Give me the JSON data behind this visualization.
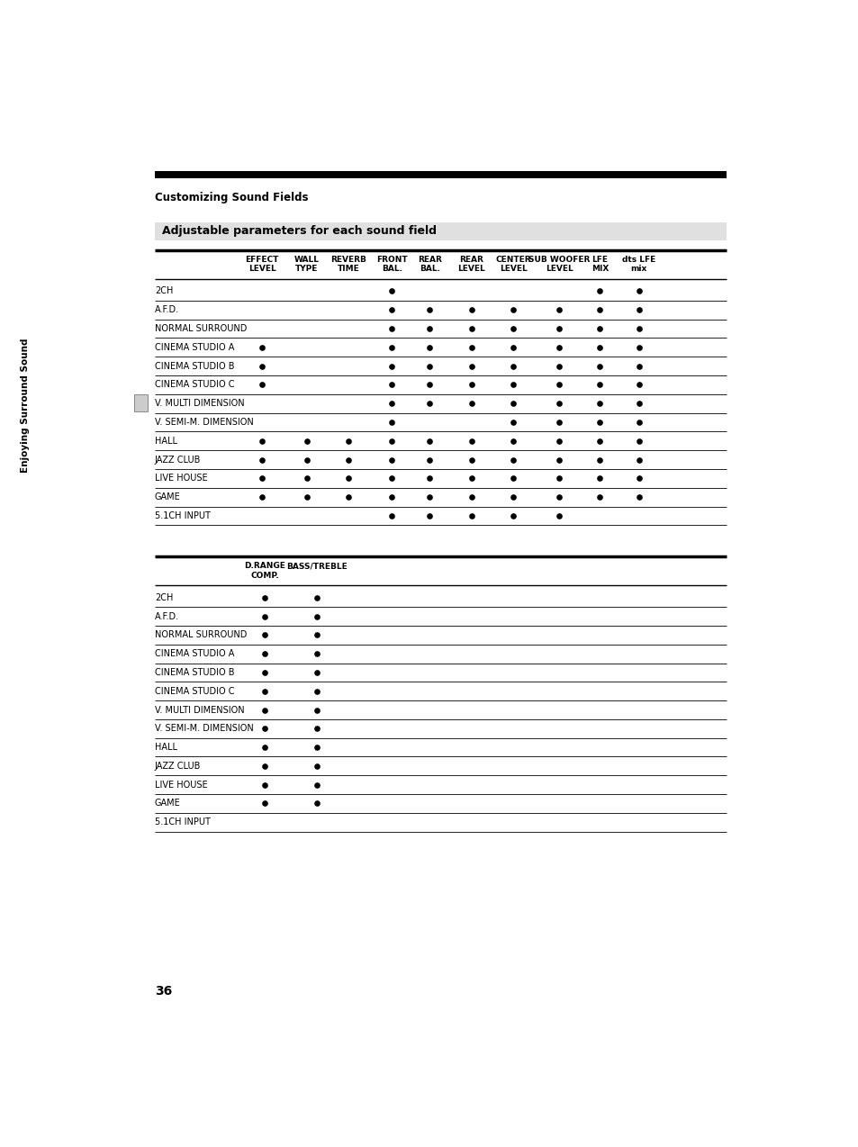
{
  "page_title": "Customizing Sound Fields",
  "section_title": "Adjustable parameters for each sound field",
  "top_bar_color": "#000000",
  "section_bg_color": "#e0e0e0",
  "text_color": "#000000",
  "dot_color": "#000000",
  "table1_col_headers": [
    "EFFECT\nLEVEL",
    "WALL\nTYPE",
    "REVERB\nTIME",
    "FRONT\nBAL.",
    "REAR\nBAL.",
    "REAR\nLEVEL",
    "CENTER\nLEVEL",
    "SUB WOOFER\nLEVEL",
    "LFE\nMIX",
    "dts LFE\nmix"
  ],
  "table1_rows": [
    [
      "2CH",
      false,
      false,
      false,
      true,
      false,
      false,
      false,
      false,
      true,
      true
    ],
    [
      "A.F.D.",
      false,
      false,
      false,
      true,
      true,
      true,
      true,
      true,
      true,
      true
    ],
    [
      "NORMAL SURROUND",
      false,
      false,
      false,
      true,
      true,
      true,
      true,
      true,
      true,
      true
    ],
    [
      "CINEMA STUDIO A",
      true,
      false,
      false,
      true,
      true,
      true,
      true,
      true,
      true,
      true
    ],
    [
      "CINEMA STUDIO B",
      true,
      false,
      false,
      true,
      true,
      true,
      true,
      true,
      true,
      true
    ],
    [
      "CINEMA STUDIO C",
      true,
      false,
      false,
      true,
      true,
      true,
      true,
      true,
      true,
      true
    ],
    [
      "V. MULTI DIMENSION",
      false,
      false,
      false,
      true,
      true,
      true,
      true,
      true,
      true,
      true
    ],
    [
      "V. SEMI-M. DIMENSION",
      false,
      false,
      false,
      true,
      false,
      false,
      true,
      true,
      true,
      true
    ],
    [
      "HALL",
      true,
      true,
      true,
      true,
      true,
      true,
      true,
      true,
      true,
      true
    ],
    [
      "JAZZ CLUB",
      true,
      true,
      true,
      true,
      true,
      true,
      true,
      true,
      true,
      true
    ],
    [
      "LIVE HOUSE",
      true,
      true,
      true,
      true,
      true,
      true,
      true,
      true,
      true,
      true
    ],
    [
      "GAME",
      true,
      true,
      true,
      true,
      true,
      true,
      true,
      true,
      true,
      true
    ],
    [
      "5.1CH INPUT",
      false,
      false,
      false,
      true,
      true,
      true,
      true,
      true,
      false,
      false
    ]
  ],
  "table2_col_headers": [
    "D.RANGE\nCOMP.",
    "BASS/TREBLE"
  ],
  "table2_rows": [
    [
      "2CH",
      true,
      true
    ],
    [
      "A.F.D.",
      true,
      true
    ],
    [
      "NORMAL SURROUND",
      true,
      true
    ],
    [
      "CINEMA STUDIO A",
      true,
      true
    ],
    [
      "CINEMA STUDIO B",
      true,
      true
    ],
    [
      "CINEMA STUDIO C",
      true,
      true
    ],
    [
      "V. MULTI DIMENSION",
      true,
      true
    ],
    [
      "V. SEMI-M. DIMENSION",
      true,
      true
    ],
    [
      "HALL",
      true,
      true
    ],
    [
      "JAZZ CLUB",
      true,
      true
    ],
    [
      "LIVE HOUSE",
      true,
      true
    ],
    [
      "GAME",
      true,
      true
    ],
    [
      "5.1CH INPUT",
      false,
      false
    ]
  ],
  "sidebar_text": "Enjoying Surround Sound",
  "page_number": "36"
}
